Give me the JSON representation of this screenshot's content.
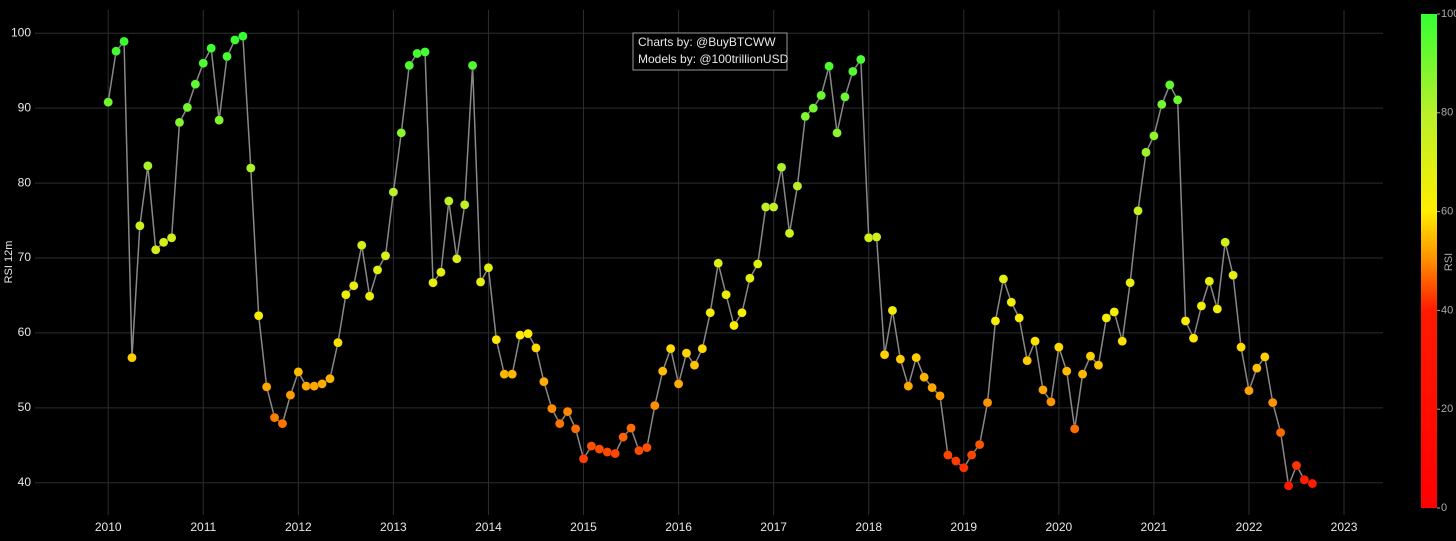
{
  "chart_data": {
    "type": "line",
    "markers": true,
    "line_color": "#888888",
    "background": "#000000",
    "grid": true,
    "ylabel": "RSI 12m",
    "annotation": [
      "Charts by: @BuyBTCWW",
      "Models by: @100trillionUSD"
    ],
    "xlim": [
      2009.23,
      2023.41
    ],
    "xticks": [
      2010,
      2011,
      2012,
      2013,
      2014,
      2015,
      2016,
      2017,
      2018,
      2019,
      2020,
      2021,
      2022,
      2023
    ],
    "ylim": [
      35.7,
      103.1
    ],
    "yticks": [
      40,
      50,
      60,
      70,
      80,
      90,
      100
    ],
    "colorscale": [
      [
        0,
        "#ff0000"
      ],
      [
        0.4,
        "#ff1a00"
      ],
      [
        0.5,
        "#ff8c00"
      ],
      [
        0.6,
        "#ffee00"
      ],
      [
        0.8,
        "#b8f02a"
      ],
      [
        1,
        "#33ff33"
      ]
    ],
    "colorbar": {
      "title": "RSI",
      "lim": [
        0,
        100
      ],
      "ticks": [
        0,
        20,
        40,
        60,
        80,
        100
      ]
    },
    "x": [
      2010,
      2010.083,
      2010.167,
      2010.25,
      2010.333,
      2010.417,
      2010.5,
      2010.583,
      2010.667,
      2010.75,
      2010.833,
      2010.917,
      2011,
      2011.083,
      2011.167,
      2011.25,
      2011.333,
      2011.417,
      2011.5,
      2011.583,
      2011.667,
      2011.75,
      2011.833,
      2011.917,
      2012,
      2012.083,
      2012.167,
      2012.25,
      2012.333,
      2012.417,
      2012.5,
      2012.583,
      2012.667,
      2012.75,
      2012.833,
      2012.917,
      2013,
      2013.083,
      2013.167,
      2013.25,
      2013.333,
      2013.417,
      2013.5,
      2013.583,
      2013.667,
      2013.75,
      2013.833,
      2013.917,
      2014,
      2014.083,
      2014.167,
      2014.25,
      2014.333,
      2014.417,
      2014.5,
      2014.583,
      2014.667,
      2014.75,
      2014.833,
      2014.917,
      2015,
      2015.083,
      2015.167,
      2015.25,
      2015.333,
      2015.417,
      2015.5,
      2015.583,
      2015.667,
      2015.75,
      2015.833,
      2015.917,
      2016,
      2016.083,
      2016.167,
      2016.25,
      2016.333,
      2016.417,
      2016.5,
      2016.583,
      2016.667,
      2016.75,
      2016.833,
      2016.917,
      2017,
      2017.083,
      2017.167,
      2017.25,
      2017.333,
      2017.417,
      2017.5,
      2017.583,
      2017.667,
      2017.75,
      2017.833,
      2017.917,
      2018,
      2018.083,
      2018.167,
      2018.25,
      2018.333,
      2018.417,
      2018.5,
      2018.583,
      2018.667,
      2018.75,
      2018.833,
      2018.917,
      2019,
      2019.083,
      2019.167,
      2019.25,
      2019.333,
      2019.417,
      2019.5,
      2019.583,
      2019.667,
      2019.75,
      2019.833,
      2019.917,
      2020,
      2020.083,
      2020.167,
      2020.25,
      2020.333,
      2020.417,
      2020.5,
      2020.583,
      2020.667,
      2020.75,
      2020.833,
      2020.917,
      2021,
      2021.083,
      2021.167,
      2021.25,
      2021.333,
      2021.417,
      2021.5,
      2021.583,
      2021.667,
      2021.75,
      2021.833,
      2021.917,
      2022,
      2022.083,
      2022.167,
      2022.25,
      2022.333,
      2022.417,
      2022.5,
      2022.583,
      2022.667
    ],
    "values": [
      90.8,
      97.6,
      98.9,
      56.7,
      74.3,
      82.3,
      71.1,
      72.1,
      72.7,
      88.1,
      90.1,
      93.2,
      96.0,
      98.0,
      88.4,
      96.9,
      99.1,
      99.6,
      82.0,
      62.3,
      52.8,
      48.7,
      47.9,
      51.7,
      54.8,
      52.9,
      52.9,
      53.2,
      53.9,
      58.7,
      65.1,
      66.3,
      71.7,
      64.9,
      68.4,
      70.3,
      78.8,
      86.7,
      95.7,
      97.3,
      97.5,
      66.7,
      68.1,
      77.6,
      69.9,
      77.1,
      95.7,
      66.8,
      68.7,
      59.1,
      54.5,
      54.5,
      59.7,
      59.9,
      58.0,
      53.5,
      49.9,
      47.9,
      49.5,
      47.2,
      43.2,
      44.9,
      44.5,
      44.1,
      43.9,
      46.1,
      47.3,
      44.3,
      44.7,
      50.3,
      54.9,
      57.9,
      53.2,
      57.3,
      55.7,
      57.9,
      62.7,
      69.3,
      65.1,
      61.0,
      62.7,
      67.3,
      69.2,
      76.8,
      76.8,
      82.1,
      73.3,
      79.6,
      88.9,
      90.0,
      91.7,
      95.6,
      86.7,
      91.5,
      94.9,
      96.5,
      72.7,
      72.8,
      57.1,
      63.0,
      56.5,
      52.9,
      56.7,
      54.1,
      52.7,
      51.6,
      43.7,
      42.9,
      42.0,
      43.7,
      45.1,
      50.7,
      61.6,
      67.2,
      64.1,
      62.0,
      56.3,
      58.9,
      52.4,
      50.8,
      58.1,
      54.9,
      47.2,
      54.5,
      56.9,
      55.7,
      62.0,
      62.8,
      58.9,
      66.7,
      76.3,
      84.1,
      86.3,
      90.5,
      93.1,
      91.1,
      61.6,
      59.3,
      63.6,
      66.9,
      63.2,
      72.1,
      67.7,
      58.1,
      52.3,
      55.3,
      56.8,
      50.7,
      46.7,
      39.6,
      42.3,
      40.4,
      39.9
    ]
  }
}
